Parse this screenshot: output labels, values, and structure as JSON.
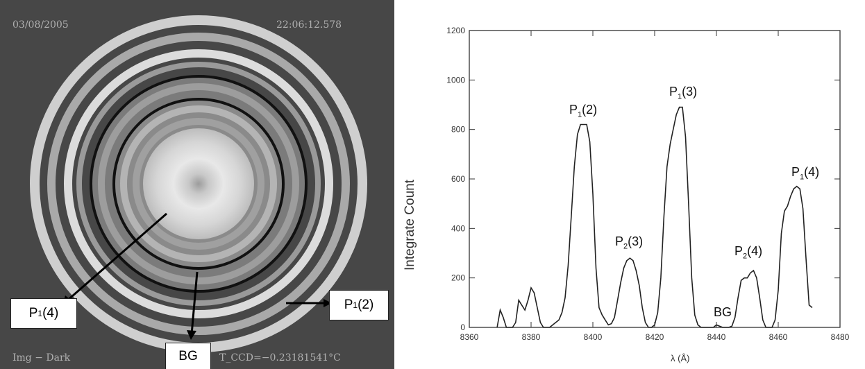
{
  "image_panel": {
    "date": "03/08/2005",
    "time": "22:06:12.578",
    "footer_left": "Img − Dark",
    "footer_right": "T_CCD=−0.23181541°C",
    "labels": {
      "p1_4": {
        "main": "P",
        "sub": "1",
        "tail": "(4)"
      },
      "p1_2": {
        "main": "P",
        "sub": "1",
        "tail": "(2)"
      },
      "bg": "BG"
    }
  },
  "chart_data": {
    "type": "line",
    "title": "",
    "ylabel": "Integrate Count",
    "xlabel": "λ (Å)",
    "xlim": [
      8360,
      8480
    ],
    "ylim": [
      0,
      1200
    ],
    "xticks": [
      8360,
      8380,
      8400,
      8420,
      8440,
      8460,
      8480
    ],
    "yticks": [
      0,
      200,
      400,
      600,
      800,
      1000,
      1200
    ],
    "series": [
      {
        "x": [
          8369,
          8370,
          8371,
          8372,
          8373,
          8374,
          8375,
          8376,
          8377,
          8378,
          8379,
          8380,
          8381,
          8382,
          8383,
          8384,
          8385,
          8386,
          8387,
          8388,
          8389,
          8390,
          8391,
          8392,
          8393,
          8394,
          8395,
          8396,
          8397,
          8398,
          8399,
          8400,
          8401,
          8402,
          8403,
          8404,
          8405,
          8406,
          8407,
          8408,
          8409,
          8410,
          8411,
          8412,
          8413,
          8414,
          8415,
          8416,
          8417,
          8418,
          8419,
          8420,
          8421,
          8422,
          8423,
          8424,
          8425,
          8426,
          8427,
          8428,
          8429,
          8430,
          8431,
          8432,
          8433,
          8434,
          8435,
          8436,
          8437,
          8438,
          8439,
          8440,
          8441,
          8442,
          8443,
          8444,
          8445,
          8446,
          8447,
          8448,
          8449,
          8450,
          8451,
          8452,
          8453,
          8454,
          8455,
          8456,
          8457,
          8458,
          8459,
          8460,
          8461,
          8462,
          8463,
          8464,
          8465,
          8466,
          8467,
          8468,
          8469,
          8470,
          8471
        ],
        "y": [
          0,
          70,
          40,
          0,
          0,
          0,
          20,
          110,
          90,
          70,
          110,
          160,
          140,
          80,
          20,
          0,
          0,
          0,
          10,
          20,
          30,
          60,
          120,
          250,
          450,
          650,
          780,
          820,
          820,
          820,
          750,
          540,
          240,
          80,
          50,
          30,
          10,
          15,
          40,
          110,
          180,
          240,
          270,
          280,
          270,
          230,
          170,
          80,
          20,
          0,
          0,
          10,
          60,
          200,
          450,
          650,
          740,
          800,
          860,
          890,
          890,
          770,
          500,
          200,
          50,
          10,
          0,
          0,
          0,
          0,
          0,
          10,
          5,
          0,
          0,
          0,
          5,
          40,
          120,
          190,
          200,
          200,
          220,
          230,
          200,
          120,
          30,
          0,
          0,
          0,
          30,
          150,
          380,
          470,
          490,
          530,
          560,
          570,
          560,
          480,
          280,
          90,
          80
        ]
      }
    ],
    "annotations": [
      {
        "main": "P",
        "sub": "1",
        "tail": "(2)"
      },
      {
        "main": "P",
        "sub": "2",
        "tail": "(3)"
      },
      {
        "main": "P",
        "sub": "1",
        "tail": "(3)"
      },
      {
        "main": "P",
        "sub": "2",
        "tail": "(4)"
      },
      {
        "main": "P",
        "sub": "1",
        "tail": "(4)"
      },
      {
        "text": "BG"
      }
    ]
  }
}
